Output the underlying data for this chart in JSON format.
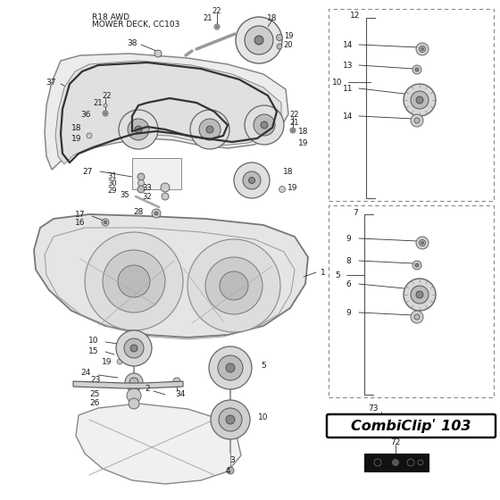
{
  "title_line1": "R18 AWD",
  "title_line2": "MOWER DECK, CC103",
  "bg_color": "#ffffff",
  "text_color": "#1a1a1a",
  "combiclip_text": "CombiClipʹ 103",
  "line_color": "#333333",
  "deck_fill": "#e8e8e8",
  "deck_edge": "#777777",
  "belt_color": "#555555",
  "pulley_fill": "#d8d8d8",
  "pulley_edge": "#666666",
  "black_fill": "#111111"
}
